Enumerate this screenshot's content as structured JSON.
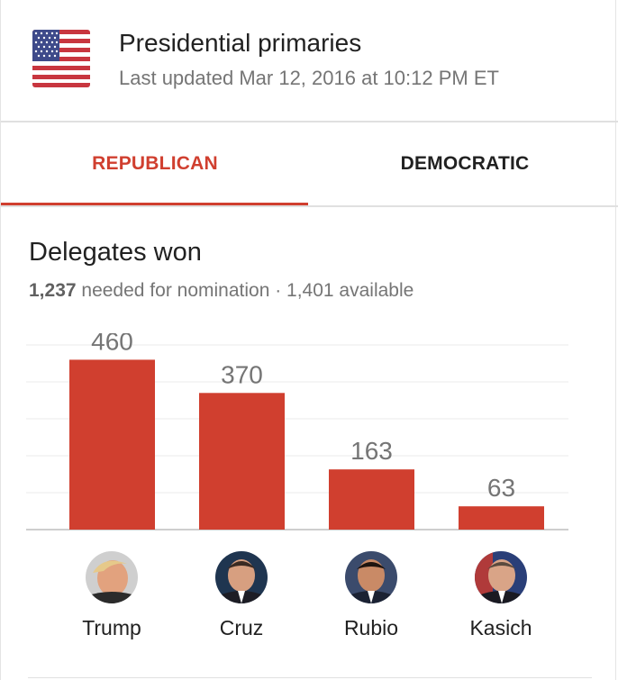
{
  "header": {
    "flag_icon": "us-flag-icon",
    "title": "Presidential primaries",
    "subtitle": "Last updated Mar 12, 2016 at 10:12 PM ET"
  },
  "tabs": [
    {
      "label": "REPUBLICAN",
      "active": true
    },
    {
      "label": "DEMOCRATIC",
      "active": false
    }
  ],
  "section": {
    "title": "Delegates won",
    "needed": "1,237",
    "subtitle_rest": " needed for nomination · 1,401 available"
  },
  "colors": {
    "accent": "#d03f2f",
    "bar": "#d03f2f"
  },
  "chart_data": {
    "type": "bar",
    "categories": [
      "Trump",
      "Cruz",
      "Rubio",
      "Kasich"
    ],
    "values": [
      460,
      370,
      163,
      63
    ],
    "ylim": [
      0,
      500
    ],
    "grid": true,
    "data_labels": true
  }
}
